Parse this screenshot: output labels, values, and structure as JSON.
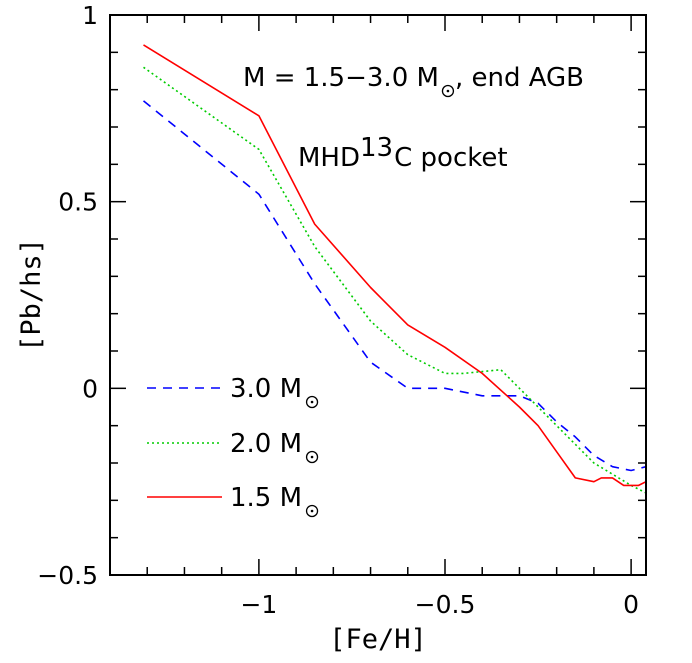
{
  "chart_data": {
    "type": "line",
    "xlabel": "[Fe/H]",
    "ylabel": "[Pb/hs]",
    "xlim": [
      -1.4,
      0.04
    ],
    "ylim": [
      -0.5,
      1.0
    ],
    "xticks": {
      "major": [
        -1,
        -0.5,
        0
      ],
      "labels": [
        "−1",
        "−0.5",
        "0"
      ],
      "minor_step": 0.1
    },
    "yticks": {
      "major": [
        -0.5,
        0,
        0.5,
        1
      ],
      "labels": [
        "−0.5",
        "0",
        "0.5",
        "1"
      ],
      "minor_step": 0.1
    },
    "grid": false,
    "legend_placement": "lower-left",
    "annotations": [
      {
        "id": "title",
        "prefix": "M = 1.5−3.0 M",
        "suffix": ", end AGB"
      },
      {
        "id": "pocket",
        "prefix": "MHD ",
        "sup": "13",
        "suffix": "C pocket"
      }
    ],
    "series": [
      {
        "name": "3.0 M",
        "color": "#0000ff",
        "dash": "dashed",
        "x": [
          -1.31,
          -1.0,
          -0.85,
          -0.7,
          -0.6,
          -0.5,
          -0.4,
          -0.3,
          -0.25,
          -0.2,
          -0.15,
          -0.1,
          -0.05,
          0.0,
          0.04
        ],
        "y": [
          0.77,
          0.52,
          0.28,
          0.07,
          0.0,
          0.0,
          -0.02,
          -0.02,
          -0.04,
          -0.09,
          -0.13,
          -0.18,
          -0.21,
          -0.22,
          -0.21
        ]
      },
      {
        "name": "2.0 M",
        "color": "#00cc00",
        "dash": "dotted",
        "x": [
          -1.31,
          -1.0,
          -0.85,
          -0.7,
          -0.6,
          -0.5,
          -0.45,
          -0.35,
          -0.3,
          -0.25,
          -0.2,
          -0.15,
          -0.1,
          -0.05,
          0.0,
          0.04
        ],
        "y": [
          0.86,
          0.64,
          0.38,
          0.18,
          0.09,
          0.04,
          0.04,
          0.05,
          0.0,
          -0.05,
          -0.1,
          -0.15,
          -0.2,
          -0.23,
          -0.26,
          -0.28
        ]
      },
      {
        "name": "1.5 M",
        "color": "#ff0000",
        "dash": "solid",
        "x": [
          -1.31,
          -1.0,
          -0.85,
          -0.7,
          -0.6,
          -0.5,
          -0.4,
          -0.3,
          -0.25,
          -0.2,
          -0.15,
          -0.1,
          -0.08,
          -0.05,
          -0.02,
          0.0,
          0.02,
          0.04
        ],
        "y": [
          0.92,
          0.73,
          0.44,
          0.27,
          0.17,
          0.11,
          0.04,
          -0.05,
          -0.1,
          -0.17,
          -0.24,
          -0.25,
          -0.24,
          -0.24,
          -0.26,
          -0.26,
          -0.26,
          -0.25
        ]
      }
    ],
    "mass_symbol": "⊙"
  }
}
